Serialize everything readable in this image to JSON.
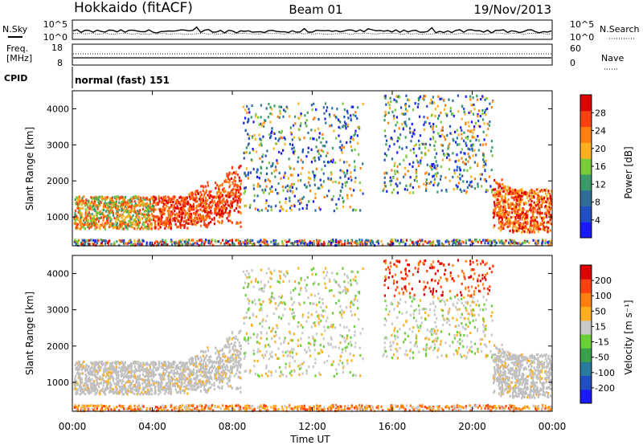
{
  "header": {
    "station": "Hokkaido (fitACF)",
    "beam": "Beam 01",
    "date": "19/Nov/2013"
  },
  "noise_panel": {
    "left_label": "N.Sky",
    "right_label": "N.Search",
    "ticks_left": [
      "10^5",
      "10^0"
    ],
    "ticks_right": [
      "10^5",
      "10^0"
    ]
  },
  "freq_panel": {
    "left_label_1": "Freq.",
    "left_label_2": "[MHz]",
    "right_label": "Nave",
    "ticks_left": [
      "18",
      "8"
    ],
    "ticks_right": [
      "60",
      "0"
    ]
  },
  "cpid_panel": {
    "label": "CPID",
    "mode": "normal (fast) 151"
  },
  "colors": {
    "power_scale": [
      "#1a1aff",
      "#1f4fc0",
      "#2f6f9a",
      "#3a9a6a",
      "#7acb3a",
      "#ffb020",
      "#ff8010",
      "#ff4010",
      "#e00000"
    ],
    "velocity_scale": [
      "#1a1aff",
      "#1f4fc0",
      "#2a7aa0",
      "#3aa04a",
      "#6ad03a",
      "#c8c8c8",
      "#ffb020",
      "#ff8010",
      "#ff4010",
      "#e00000"
    ],
    "ground_scatter": "#c0c0c0"
  },
  "chart_data": [
    {
      "type": "heatmap",
      "name": "Power",
      "ylabel": "Slant Range [km]",
      "xlim_hours": [
        0,
        24
      ],
      "ylim_km": [
        200,
        4500
      ],
      "yticks": [
        "1000",
        "2000",
        "3000",
        "4000"
      ],
      "colorbar_label": "Power [dB]",
      "colorbar_ticks": [
        "28",
        "24",
        "20",
        "16",
        "12",
        "8",
        "4"
      ],
      "features": [
        {
          "desc": "evening band",
          "x_from": 0.0,
          "x_to": 8.4,
          "range_from": 700,
          "range_to": 2100
        },
        {
          "desc": "midday patches",
          "x_from": 8.5,
          "x_to": 14.5,
          "range_from": 1200,
          "range_to": 4200
        },
        {
          "desc": "afternoon echoes",
          "x_from": 15.5,
          "x_to": 21.0,
          "range_from": 1700,
          "range_to": 4400
        },
        {
          "desc": "pre-midnight band",
          "x_from": 21.0,
          "x_to": 24.0,
          "range_from": 600,
          "range_to": 2500
        }
      ]
    },
    {
      "type": "heatmap",
      "name": "Velocity",
      "ylabel": "Slant Range [km]",
      "xlabel": "Time UT",
      "xlim_hours": [
        0,
        24
      ],
      "ylim_km": [
        200,
        4500
      ],
      "xticks": [
        "00:00",
        "04:00",
        "08:00",
        "12:00",
        "16:00",
        "20:00",
        "00:00"
      ],
      "yticks": [
        "1000",
        "2000",
        "3000",
        "4000"
      ],
      "colorbar_label": "Velocity [m s⁻¹]",
      "colorbar_ticks": [
        "200",
        "100",
        "50",
        "15",
        "-15",
        "-50",
        "-100",
        "-200"
      ]
    }
  ],
  "time_label": "Time UT"
}
